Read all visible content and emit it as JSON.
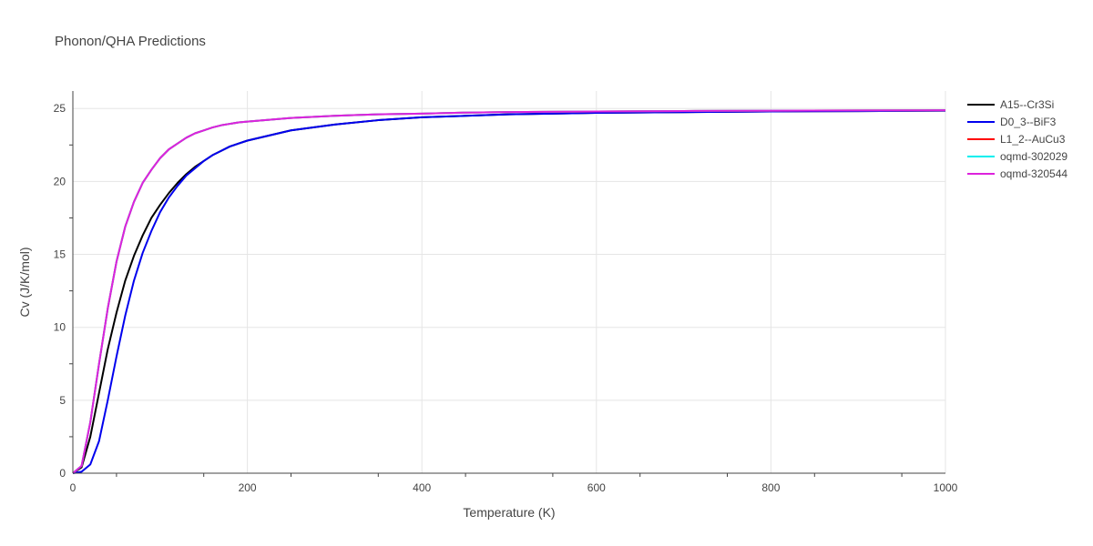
{
  "chart_data": {
    "type": "line",
    "title": "Phonon/QHA Predictions",
    "xlabel": "Temperature (K)",
    "ylabel": "Cv (J/K/mol)",
    "xlim": [
      0,
      1000
    ],
    "ylim": [
      0,
      26.2
    ],
    "xticks": [
      0,
      200,
      400,
      600,
      800,
      1000
    ],
    "xtick_labels": [
      "0",
      "200",
      "400",
      "600",
      "800",
      "1000"
    ],
    "yticks": [
      0,
      5,
      10,
      15,
      20,
      25
    ],
    "ytick_labels": [
      "0",
      "5",
      "10",
      "15",
      "20",
      "25"
    ],
    "grid": true,
    "legend_position": "top-right",
    "series": [
      {
        "name": "A15--Cr3Si",
        "color": "#000000",
        "x": [
          0,
          10,
          20,
          30,
          40,
          50,
          60,
          70,
          80,
          90,
          100,
          110,
          120,
          130,
          140,
          150,
          160,
          170,
          180,
          190,
          200,
          250,
          300,
          350,
          400,
          450,
          500,
          600,
          700,
          800,
          900,
          1000
        ],
        "y": [
          0,
          0.4,
          2.5,
          5.5,
          8.5,
          11.0,
          13.2,
          14.9,
          16.3,
          17.5,
          18.4,
          19.2,
          19.9,
          20.5,
          21.0,
          21.4,
          21.8,
          22.1,
          22.4,
          22.6,
          22.8,
          23.5,
          23.9,
          24.2,
          24.4,
          24.5,
          24.6,
          24.7,
          24.75,
          24.8,
          24.82,
          24.85
        ]
      },
      {
        "name": "D0_3--BiF3",
        "color": "#0000ee",
        "x": [
          0,
          10,
          20,
          30,
          40,
          50,
          60,
          70,
          80,
          90,
          100,
          110,
          120,
          130,
          140,
          150,
          160,
          170,
          180,
          190,
          200,
          250,
          300,
          350,
          400,
          450,
          500,
          600,
          700,
          800,
          900,
          1000
        ],
        "y": [
          0,
          0.1,
          0.6,
          2.2,
          5.0,
          8.0,
          10.8,
          13.2,
          15.1,
          16.6,
          17.9,
          18.9,
          19.7,
          20.4,
          20.9,
          21.4,
          21.8,
          22.1,
          22.4,
          22.6,
          22.8,
          23.5,
          23.9,
          24.2,
          24.4,
          24.5,
          24.6,
          24.7,
          24.75,
          24.8,
          24.82,
          24.85
        ]
      },
      {
        "name": "L1_2--AuCu3",
        "color": "#ff0000",
        "x": [
          0,
          10,
          20,
          30,
          40,
          50,
          60,
          70,
          80,
          90,
          100,
          110,
          120,
          130,
          140,
          150,
          160,
          170,
          180,
          190,
          200,
          250,
          300,
          350,
          400,
          450,
          500,
          600,
          700,
          800,
          900,
          1000
        ],
        "y": [
          0,
          0.5,
          3.5,
          7.5,
          11.3,
          14.5,
          16.9,
          18.6,
          19.9,
          20.8,
          21.6,
          22.2,
          22.6,
          23.0,
          23.3,
          23.5,
          23.7,
          23.85,
          23.95,
          24.05,
          24.1,
          24.35,
          24.5,
          24.6,
          24.65,
          24.72,
          24.76,
          24.8,
          24.83,
          24.85,
          24.87,
          24.88
        ]
      },
      {
        "name": "oqmd-302029",
        "color": "#00eeee",
        "x": [
          0,
          10,
          20,
          30,
          40,
          50,
          60,
          70,
          80,
          90,
          100,
          110,
          120,
          130,
          140,
          150,
          160,
          170,
          180,
          190,
          200,
          250,
          300,
          350,
          400,
          450,
          500,
          600,
          700,
          800,
          900,
          1000
        ],
        "y": [
          0,
          0.5,
          3.5,
          7.5,
          11.3,
          14.5,
          16.9,
          18.6,
          19.9,
          20.8,
          21.6,
          22.2,
          22.6,
          23.0,
          23.3,
          23.5,
          23.7,
          23.85,
          23.95,
          24.05,
          24.1,
          24.35,
          24.5,
          24.6,
          24.65,
          24.72,
          24.76,
          24.8,
          24.83,
          24.85,
          24.87,
          24.88
        ]
      },
      {
        "name": "oqmd-320544",
        "color": "#dd22dd",
        "x": [
          0,
          10,
          20,
          30,
          40,
          50,
          60,
          70,
          80,
          90,
          100,
          110,
          120,
          130,
          140,
          150,
          160,
          170,
          180,
          190,
          200,
          250,
          300,
          350,
          400,
          450,
          500,
          600,
          700,
          800,
          900,
          1000
        ],
        "y": [
          0,
          0.5,
          3.5,
          7.5,
          11.3,
          14.5,
          16.9,
          18.6,
          19.9,
          20.8,
          21.6,
          22.2,
          22.6,
          23.0,
          23.3,
          23.5,
          23.7,
          23.85,
          23.95,
          24.05,
          24.1,
          24.35,
          24.5,
          24.6,
          24.65,
          24.72,
          24.76,
          24.8,
          24.83,
          24.85,
          24.87,
          24.88
        ]
      }
    ]
  }
}
